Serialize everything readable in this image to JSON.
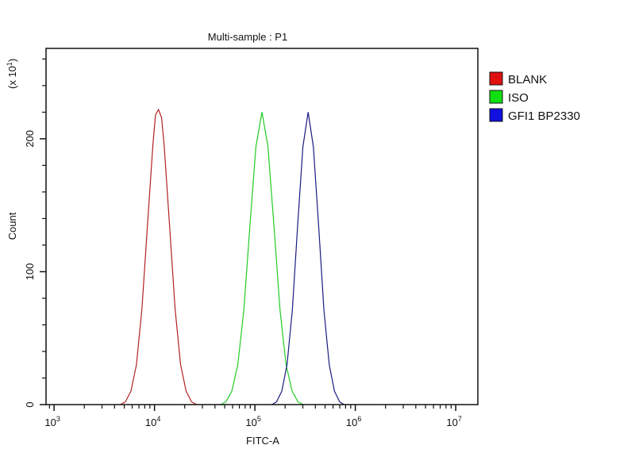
{
  "chart_data": {
    "type": "line",
    "title": "Multi-sample : P1",
    "xlabel": "FITC-A",
    "ylabel": "Count",
    "y_multiplier_label": "(x 10",
    "y_multiplier_exp": "1",
    "x_scale": "log10",
    "xlim_log10": [
      2.92,
      7.22
    ],
    "ylim": [
      0,
      268
    ],
    "x_ticks": [
      {
        "base": "10",
        "exp": "3",
        "log": 3
      },
      {
        "base": "10",
        "exp": "4",
        "log": 4
      },
      {
        "base": "10",
        "exp": "5",
        "log": 5
      },
      {
        "base": "10",
        "exp": "6",
        "log": 6
      },
      {
        "base": "10",
        "exp": "7",
        "log": 7
      }
    ],
    "y_ticks": [
      {
        "label": "0",
        "value": 0
      },
      {
        "label": "100",
        "value": 100
      },
      {
        "label": "200",
        "value": 200
      }
    ],
    "y_minor_ticks": [
      20,
      40,
      60,
      80,
      120,
      140,
      160,
      180,
      220,
      240,
      260
    ],
    "legend_position": "right-top",
    "series": [
      {
        "name": "BLANK",
        "color": "#b22222",
        "swatch": "#e01010",
        "log10_x": [
          3.66,
          3.71,
          3.765,
          3.82,
          3.875,
          3.93,
          3.985,
          4.01,
          4.04,
          4.07,
          4.095,
          4.15,
          4.205,
          4.26,
          4.315,
          4.37,
          4.42
        ],
        "counts": [
          0,
          2,
          10,
          30,
          72,
          135,
          196,
          218,
          222,
          216,
          196,
          135,
          72,
          30,
          10,
          2,
          0
        ]
      },
      {
        "name": "ISO",
        "color": "#22cc22",
        "swatch": "#10e010",
        "log10_x": [
          4.66,
          4.71,
          4.77,
          4.83,
          4.89,
          4.95,
          5.01,
          5.07,
          5.13,
          5.19,
          5.25,
          5.31,
          5.37,
          5.43,
          5.48
        ],
        "counts": [
          0,
          2,
          10,
          30,
          71,
          134,
          194,
          220,
          194,
          134,
          71,
          30,
          10,
          2,
          0
        ]
      },
      {
        "name": "GFI1 BP2330",
        "color": "#1a1a80",
        "swatch": "#1010e0",
        "log10_x": [
          5.17,
          5.215,
          5.2675,
          5.32,
          5.3725,
          5.425,
          5.4775,
          5.53,
          5.5825,
          5.635,
          5.6875,
          5.74,
          5.7925,
          5.845,
          5.89
        ],
        "counts": [
          0,
          2,
          10,
          30,
          71,
          134,
          194,
          220,
          194,
          134,
          71,
          30,
          10,
          2,
          0
        ]
      }
    ]
  }
}
